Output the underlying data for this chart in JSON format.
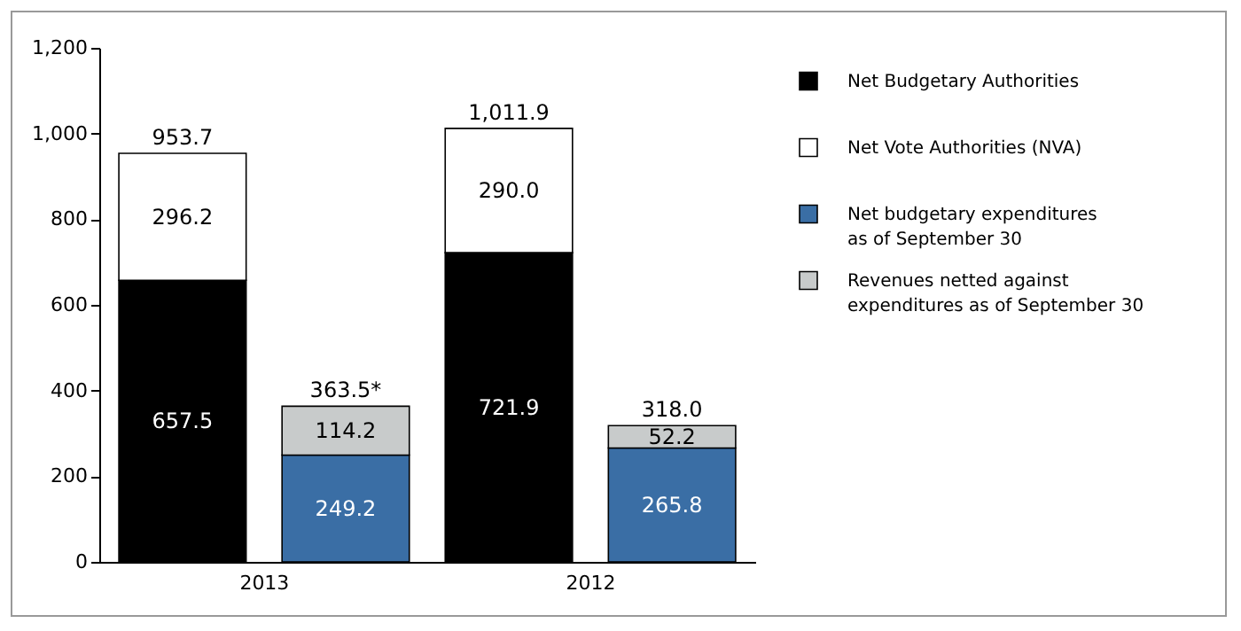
{
  "chart_data": {
    "type": "bar",
    "stacked": true,
    "categories": [
      "2013",
      null,
      "2012",
      null
    ],
    "series": [
      {
        "name": "Net Budgetary Authorities",
        "color": "#000000",
        "values": [
          657.5,
          null,
          721.9,
          null
        ],
        "value_labels": [
          "657.5",
          null,
          "721.9",
          null
        ]
      },
      {
        "name": "Net Vote Authorities (NVA)",
        "color": "#ffffff",
        "values": [
          296.2,
          null,
          290.0,
          null
        ],
        "value_labels": [
          "296.2",
          null,
          "290.0",
          null
        ]
      },
      {
        "name": "Net budgetary expenditures\nas of September 30",
        "color": "#3a6ea5",
        "values": [
          null,
          249.2,
          null,
          265.8
        ],
        "value_labels": [
          null,
          "249.2",
          null,
          "265.8"
        ]
      },
      {
        "name": "Revenues netted against\nexpenditures as of September 30",
        "color": "#c8cbcb",
        "values": [
          null,
          114.2,
          null,
          52.2
        ],
        "value_labels": [
          null,
          "114.2",
          null,
          "52.2"
        ]
      }
    ],
    "totals": [
      "953.7",
      "363.5*",
      "1,011.9",
      "318.0"
    ],
    "ylim": [
      0,
      1200
    ],
    "yticks": [
      0,
      200,
      400,
      600,
      800,
      {
        "value": 1000,
        "label": "1,000"
      },
      {
        "value": 1200,
        "label": "1,200"
      }
    ],
    "grid": false,
    "legend": "top right"
  }
}
